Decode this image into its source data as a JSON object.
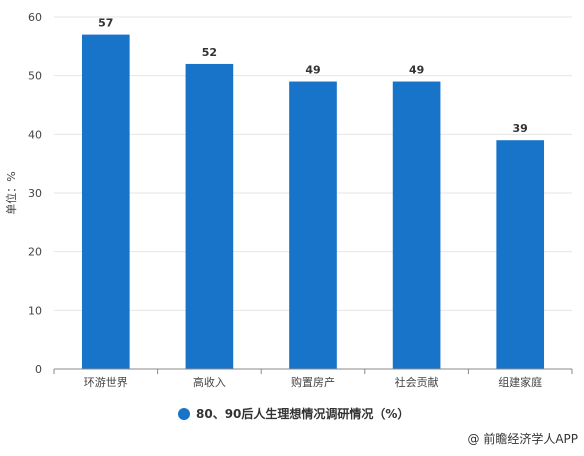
{
  "chart_data": {
    "type": "bar",
    "categories": [
      "环游世界",
      "高收入",
      "购置房产",
      "社会贡献",
      "组建家庭"
    ],
    "series": [
      {
        "name": "80、90后人生理想情况调研情况（%）",
        "values": [
          57,
          52,
          49,
          49,
          39
        ]
      }
    ],
    "data_labels": [
      "57",
      "52",
      "49",
      "49",
      "39"
    ],
    "ylabel": "单位：%",
    "xlabel": "",
    "ylim": [
      0,
      60
    ],
    "yticks": [
      0,
      10,
      20,
      30,
      40,
      50,
      60
    ],
    "grid": true,
    "legend_position": "bottom-center",
    "bar_color": "#1874c8"
  },
  "source": "@ 前瞻经济学人APP"
}
